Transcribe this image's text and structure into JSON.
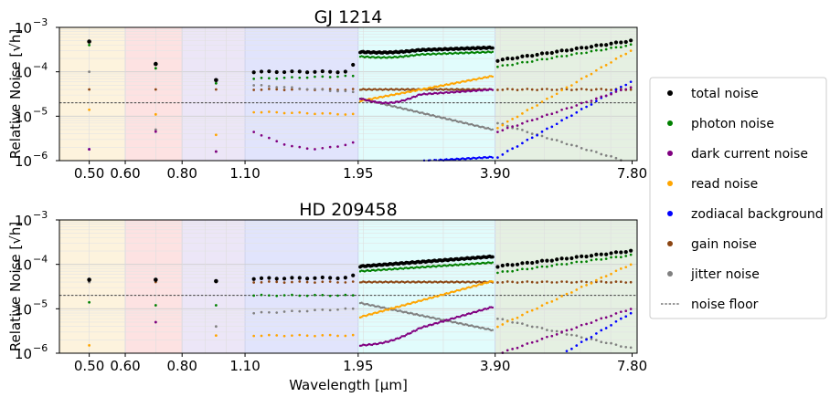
{
  "chart_data": [
    {
      "type": "scatter",
      "title": "GJ 1214",
      "ylabel": "Relative Noise [√h]",
      "xlabel": "",
      "xscale": "log",
      "yscale": "log",
      "xlim": [
        0.43,
        8.0
      ],
      "ylim": [
        1e-06,
        0.001
      ],
      "xticks": [
        0.5,
        0.6,
        0.8,
        1.1,
        1.95,
        3.9,
        7.8
      ],
      "xtick_labels": [
        "0.50",
        "0.60",
        "0.80",
        "1.10",
        "1.95",
        "3.90",
        "7.80"
      ],
      "yticks": [
        1e-06,
        1e-05,
        0.0001,
        0.001
      ],
      "ytick_labels": [
        "10",
        "10",
        "10",
        "10"
      ],
      "ytick_exps": [
        "−6",
        "−5",
        "−4",
        "−3"
      ],
      "noise_floor": 2e-05,
      "grid": true,
      "bands": [
        {
          "x0": 0.43,
          "x1": 0.6,
          "color": "#fdf3dd"
        },
        {
          "x0": 0.6,
          "x1": 0.8,
          "color": "#fde2e2"
        },
        {
          "x0": 0.8,
          "x1": 1.1,
          "color": "#ece6f7"
        },
        {
          "x0": 1.1,
          "x1": 1.95,
          "color": "#e1e4fc"
        },
        {
          "x0": 1.95,
          "x1": 3.9,
          "color": "#e1fcfc"
        },
        {
          "x0": 3.9,
          "x1": 8.0,
          "color": "#e5f0e2"
        }
      ],
      "groups": [
        {
          "x": [
            0.5
          ],
          "series": {
            "total": [
              0.00048
            ],
            "photon": [
              0.0004
            ],
            "dark": [
              1.8e-06
            ],
            "read": [
              1.4e-05
            ],
            "zodi": [
              1.8e-06
            ],
            "gain": [
              4e-05
            ],
            "jitter": [
              0.0001
            ]
          }
        },
        {
          "x": [
            0.7
          ],
          "series": {
            "total": [
              0.00015
            ],
            "photon": [
              0.00012
            ],
            "dark": [
              4.5e-06
            ],
            "read": [
              1.1e-05
            ],
            "gain": [
              4e-05
            ],
            "jitter": [
              5e-06
            ]
          }
        },
        {
          "x": [
            0.95
          ],
          "series": {
            "total": [
              6.5e-05
            ],
            "photon": [
              5.5e-05
            ],
            "dark": [
              1.6e-06
            ],
            "read": [
              3.8e-06
            ],
            "gain": [
              4e-05
            ],
            "jitter": [
              1.6e-06
            ]
          }
        },
        {
          "x_range": [
            1.15,
            1.9
          ],
          "n": 14,
          "series": {
            "total": {
              "start": 0.0001,
              "end": 0.0001,
              "endbump": 0.00014
            },
            "photon": {
              "start": 7e-05,
              "end": 8e-05
            },
            "dark": {
              "start": 4.5e-06,
              "end": 2.5e-06,
              "mid": 2e-06
            },
            "read": {
              "start": 1.25e-05,
              "end": 1.1e-05
            },
            "gain": {
              "start": 4e-05,
              "end": 4e-05
            },
            "jitter": {
              "start": 5e-05,
              "end": 3.5e-05
            }
          }
        },
        {
          "x_range": [
            1.97,
            3.85
          ],
          "n": 90,
          "series": {
            "total": {
              "start": 0.00028,
              "end": 0.00035,
              "dip": 0.00026
            },
            "photon": {
              "start": 0.00022,
              "end": 0.00028,
              "dip": 0.0002
            },
            "dark": {
              "start": 2.5e-05,
              "end": 4e-05,
              "dip": 1.8e-05
            },
            "read": {
              "start": 2.2e-05,
              "end": 8e-05
            },
            "zodi": {
              "start": 9e-07,
              "end": 1.2e-06,
              "from": 2.35
            },
            "gain": {
              "start": 4e-05,
              "end": 4e-05
            },
            "jitter": {
              "start": 2.5e-05,
              "end": 5e-06
            }
          }
        },
        {
          "x_range": [
            3.95,
            7.75
          ],
          "n": 28,
          "series": {
            "total": {
              "start": 0.00018,
              "end": 0.0005
            },
            "photon": {
              "start": 0.00013,
              "end": 0.0004
            },
            "dark": {
              "start": 4.5e-06,
              "end": 4.5e-05
            },
            "read": {
              "start": 5.5e-06,
              "end": 0.0003
            },
            "zodi": {
              "start": 1.2e-06,
              "end": 6e-05
            },
            "gain": {
              "start": 4e-05,
              "end": 4e-05
            },
            "jitter": {
              "start": 7e-06,
              "end": 9e-07
            }
          }
        }
      ]
    },
    {
      "type": "scatter",
      "title": "HD 209458",
      "ylabel": "Relative Noise [√h]",
      "xlabel": "Wavelength [μm]",
      "xscale": "log",
      "yscale": "log",
      "xlim": [
        0.43,
        8.0
      ],
      "ylim": [
        1e-06,
        0.001
      ],
      "xticks": [
        0.5,
        0.6,
        0.8,
        1.1,
        1.95,
        3.9,
        7.8
      ],
      "xtick_labels": [
        "0.50",
        "0.60",
        "0.80",
        "1.10",
        "1.95",
        "3.90",
        "7.80"
      ],
      "yticks": [
        1e-06,
        1e-05,
        0.0001,
        0.001
      ],
      "ytick_labels": [
        "10",
        "10",
        "10",
        "10"
      ],
      "ytick_exps": [
        "−6",
        "−5",
        "−4",
        "−3"
      ],
      "noise_floor": 2e-05,
      "grid": true,
      "bands": [
        {
          "x0": 0.43,
          "x1": 0.6,
          "color": "#fdf3dd"
        },
        {
          "x0": 0.6,
          "x1": 0.8,
          "color": "#fde2e2"
        },
        {
          "x0": 0.8,
          "x1": 1.1,
          "color": "#ece6f7"
        },
        {
          "x0": 1.1,
          "x1": 1.95,
          "color": "#e1e4fc"
        },
        {
          "x0": 1.95,
          "x1": 3.9,
          "color": "#e1fcfc"
        },
        {
          "x0": 3.9,
          "x1": 8.0,
          "color": "#e5f0e2"
        }
      ],
      "groups": [
        {
          "x": [
            0.5
          ],
          "series": {
            "total": [
              4.5e-05
            ],
            "photon": [
              1.4e-05
            ],
            "read": [
              1.5e-06
            ],
            "gain": [
              4e-05
            ],
            "jitter": [
              4e-05
            ]
          }
        },
        {
          "x": [
            0.7
          ],
          "series": {
            "total": [
              4.5e-05
            ],
            "photon": [
              1.2e-05
            ],
            "dark": [
              5e-06
            ],
            "gain": [
              4e-05
            ],
            "jitter": [
              5e-06
            ]
          }
        },
        {
          "x": [
            0.95
          ],
          "series": {
            "total": [
              4.2e-05
            ],
            "photon": [
              1.2e-05
            ],
            "read": [
              2.5e-06
            ],
            "gain": [
              4e-05
            ],
            "jitter": [
              4e-06
            ]
          }
        },
        {
          "x_range": [
            1.15,
            1.9
          ],
          "n": 14,
          "series": {
            "total": {
              "start": 4.8e-05,
              "end": 5e-05,
              "endbump": 5.5e-05
            },
            "photon": {
              "start": 2e-05,
              "end": 2e-05
            },
            "read": {
              "start": 2.5e-06,
              "end": 2.5e-06
            },
            "gain": {
              "start": 4e-05,
              "end": 4e-05
            },
            "jitter": {
              "start": 8e-06,
              "end": 1e-05
            }
          }
        },
        {
          "x_range": [
            1.97,
            3.85
          ],
          "n": 90,
          "series": {
            "total": {
              "start": 9e-05,
              "end": 0.00015
            },
            "photon": {
              "start": 7e-05,
              "end": 0.00011
            },
            "dark": {
              "start": 1.5e-06,
              "end": 1.1e-05,
              "dip": 1.2e-06
            },
            "read": {
              "start": 6.5e-06,
              "end": 4.2e-05
            },
            "gain": {
              "start": 4e-05,
              "end": 4e-05
            },
            "jitter": {
              "start": 1.35e-05,
              "end": 3.3e-06
            }
          }
        },
        {
          "x_range": [
            3.95,
            7.75
          ],
          "n": 28,
          "series": {
            "total": {
              "start": 9e-05,
              "end": 0.0002
            },
            "photon": {
              "start": 6.5e-05,
              "end": 0.00016
            },
            "dark": {
              "start": 9.5e-07,
              "end": 1e-05
            },
            "read": {
              "start": 4e-06,
              "end": 0.0001
            },
            "zodi": {
              "start": 1.1e-06,
              "end": 8e-06,
              "from": 5.6
            },
            "gain": {
              "start": 4e-05,
              "end": 4e-05
            },
            "jitter": {
              "start": 6e-06,
              "end": 1.3e-06
            }
          }
        }
      ]
    }
  ],
  "legend": {
    "placement": "right",
    "entries": [
      {
        "key": "total",
        "label": "total noise",
        "color": "#000000",
        "marker": "dot"
      },
      {
        "key": "photon",
        "label": "photon noise",
        "color": "#008000",
        "marker": "dot"
      },
      {
        "key": "dark",
        "label": "dark current noise",
        "color": "#800080",
        "marker": "dot"
      },
      {
        "key": "read",
        "label": "read noise",
        "color": "#ffa500",
        "marker": "dot"
      },
      {
        "key": "zodi",
        "label": "zodiacal background",
        "color": "#0000ff",
        "marker": "dot"
      },
      {
        "key": "gain",
        "label": "gain noise",
        "color": "#8b4513",
        "marker": "dot"
      },
      {
        "key": "jitter",
        "label": "jitter noise",
        "color": "#808080",
        "marker": "dot"
      },
      {
        "key": "floor",
        "label": "noise floor",
        "color": "#333333",
        "marker": "dash"
      }
    ]
  }
}
